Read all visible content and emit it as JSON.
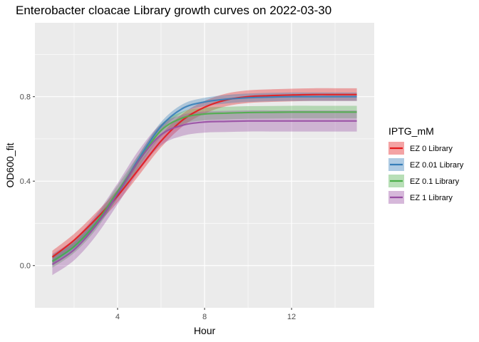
{
  "chart_data": {
    "type": "line",
    "title": "Enterobacter cloacae Library growth curves on 2022-03-30",
    "xlabel": "Hour",
    "ylabel": "OD600_fit",
    "xlim": [
      0.2,
      15.8
    ],
    "ylim": [
      -0.2,
      1.15
    ],
    "x_ticks": [
      4,
      8,
      12
    ],
    "x_tick_labels": [
      "4",
      "8",
      "12"
    ],
    "y_ticks": [
      0.0,
      0.4,
      0.8
    ],
    "y_tick_labels": [
      "0.0",
      "0.4",
      "0.8"
    ],
    "grid": true,
    "legend": {
      "title": "IPTG_mM",
      "position": "right"
    },
    "x": [
      1,
      2,
      3,
      4,
      5,
      6,
      7,
      8,
      9,
      10,
      11,
      12,
      13,
      14,
      15
    ],
    "series": [
      {
        "name": "EZ 0 Library",
        "color": "#e41a1c",
        "values": [
          0.04,
          0.12,
          0.22,
          0.33,
          0.46,
          0.59,
          0.69,
          0.75,
          0.785,
          0.8,
          0.805,
          0.808,
          0.81,
          0.81,
          0.81
        ],
        "band": 0.03
      },
      {
        "name": "EZ 0.01 Library",
        "color": "#377eb8",
        "values": [
          0.02,
          0.09,
          0.2,
          0.34,
          0.51,
          0.66,
          0.745,
          0.775,
          0.788,
          0.795,
          0.798,
          0.8,
          0.8,
          0.8,
          0.8
        ],
        "band": 0.02
      },
      {
        "name": "EZ 0.1 Library",
        "color": "#4daf4a",
        "values": [
          0.02,
          0.09,
          0.2,
          0.35,
          0.5,
          0.64,
          0.7,
          0.718,
          0.722,
          0.725,
          0.726,
          0.727,
          0.727,
          0.727,
          0.727
        ],
        "band": 0.03
      },
      {
        "name": "EZ 1 Library",
        "color": "#984ea3",
        "values": [
          0.005,
          0.075,
          0.19,
          0.34,
          0.5,
          0.62,
          0.665,
          0.68,
          0.683,
          0.685,
          0.685,
          0.685,
          0.685,
          0.685,
          0.685
        ],
        "band": 0.05
      }
    ]
  }
}
